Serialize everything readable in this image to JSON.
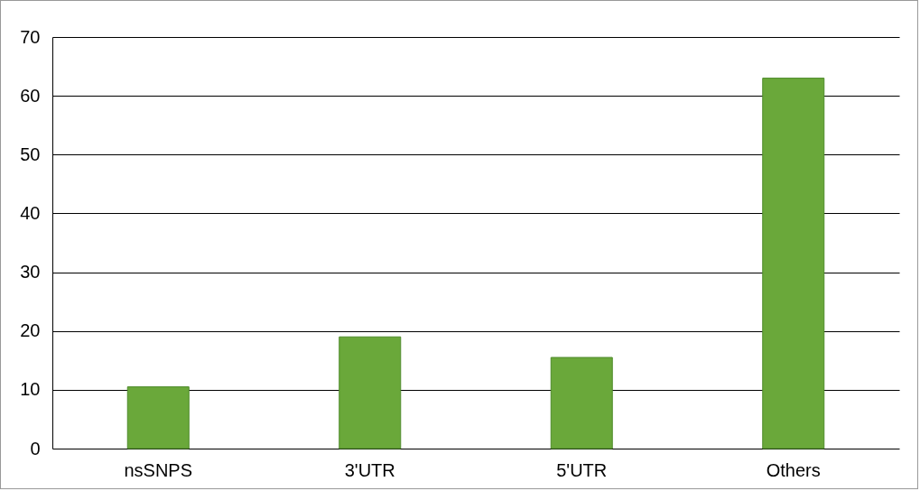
{
  "chart_data": {
    "type": "bar",
    "categories": [
      "nsSNPS",
      "3'UTR",
      "5'UTR",
      "Others"
    ],
    "values": [
      10.5,
      19,
      15.5,
      63
    ],
    "color": "#6aa83a",
    "ylim": [
      0,
      70
    ],
    "yticks": [
      0,
      10,
      20,
      30,
      40,
      50,
      60,
      70
    ],
    "grid": "y"
  }
}
